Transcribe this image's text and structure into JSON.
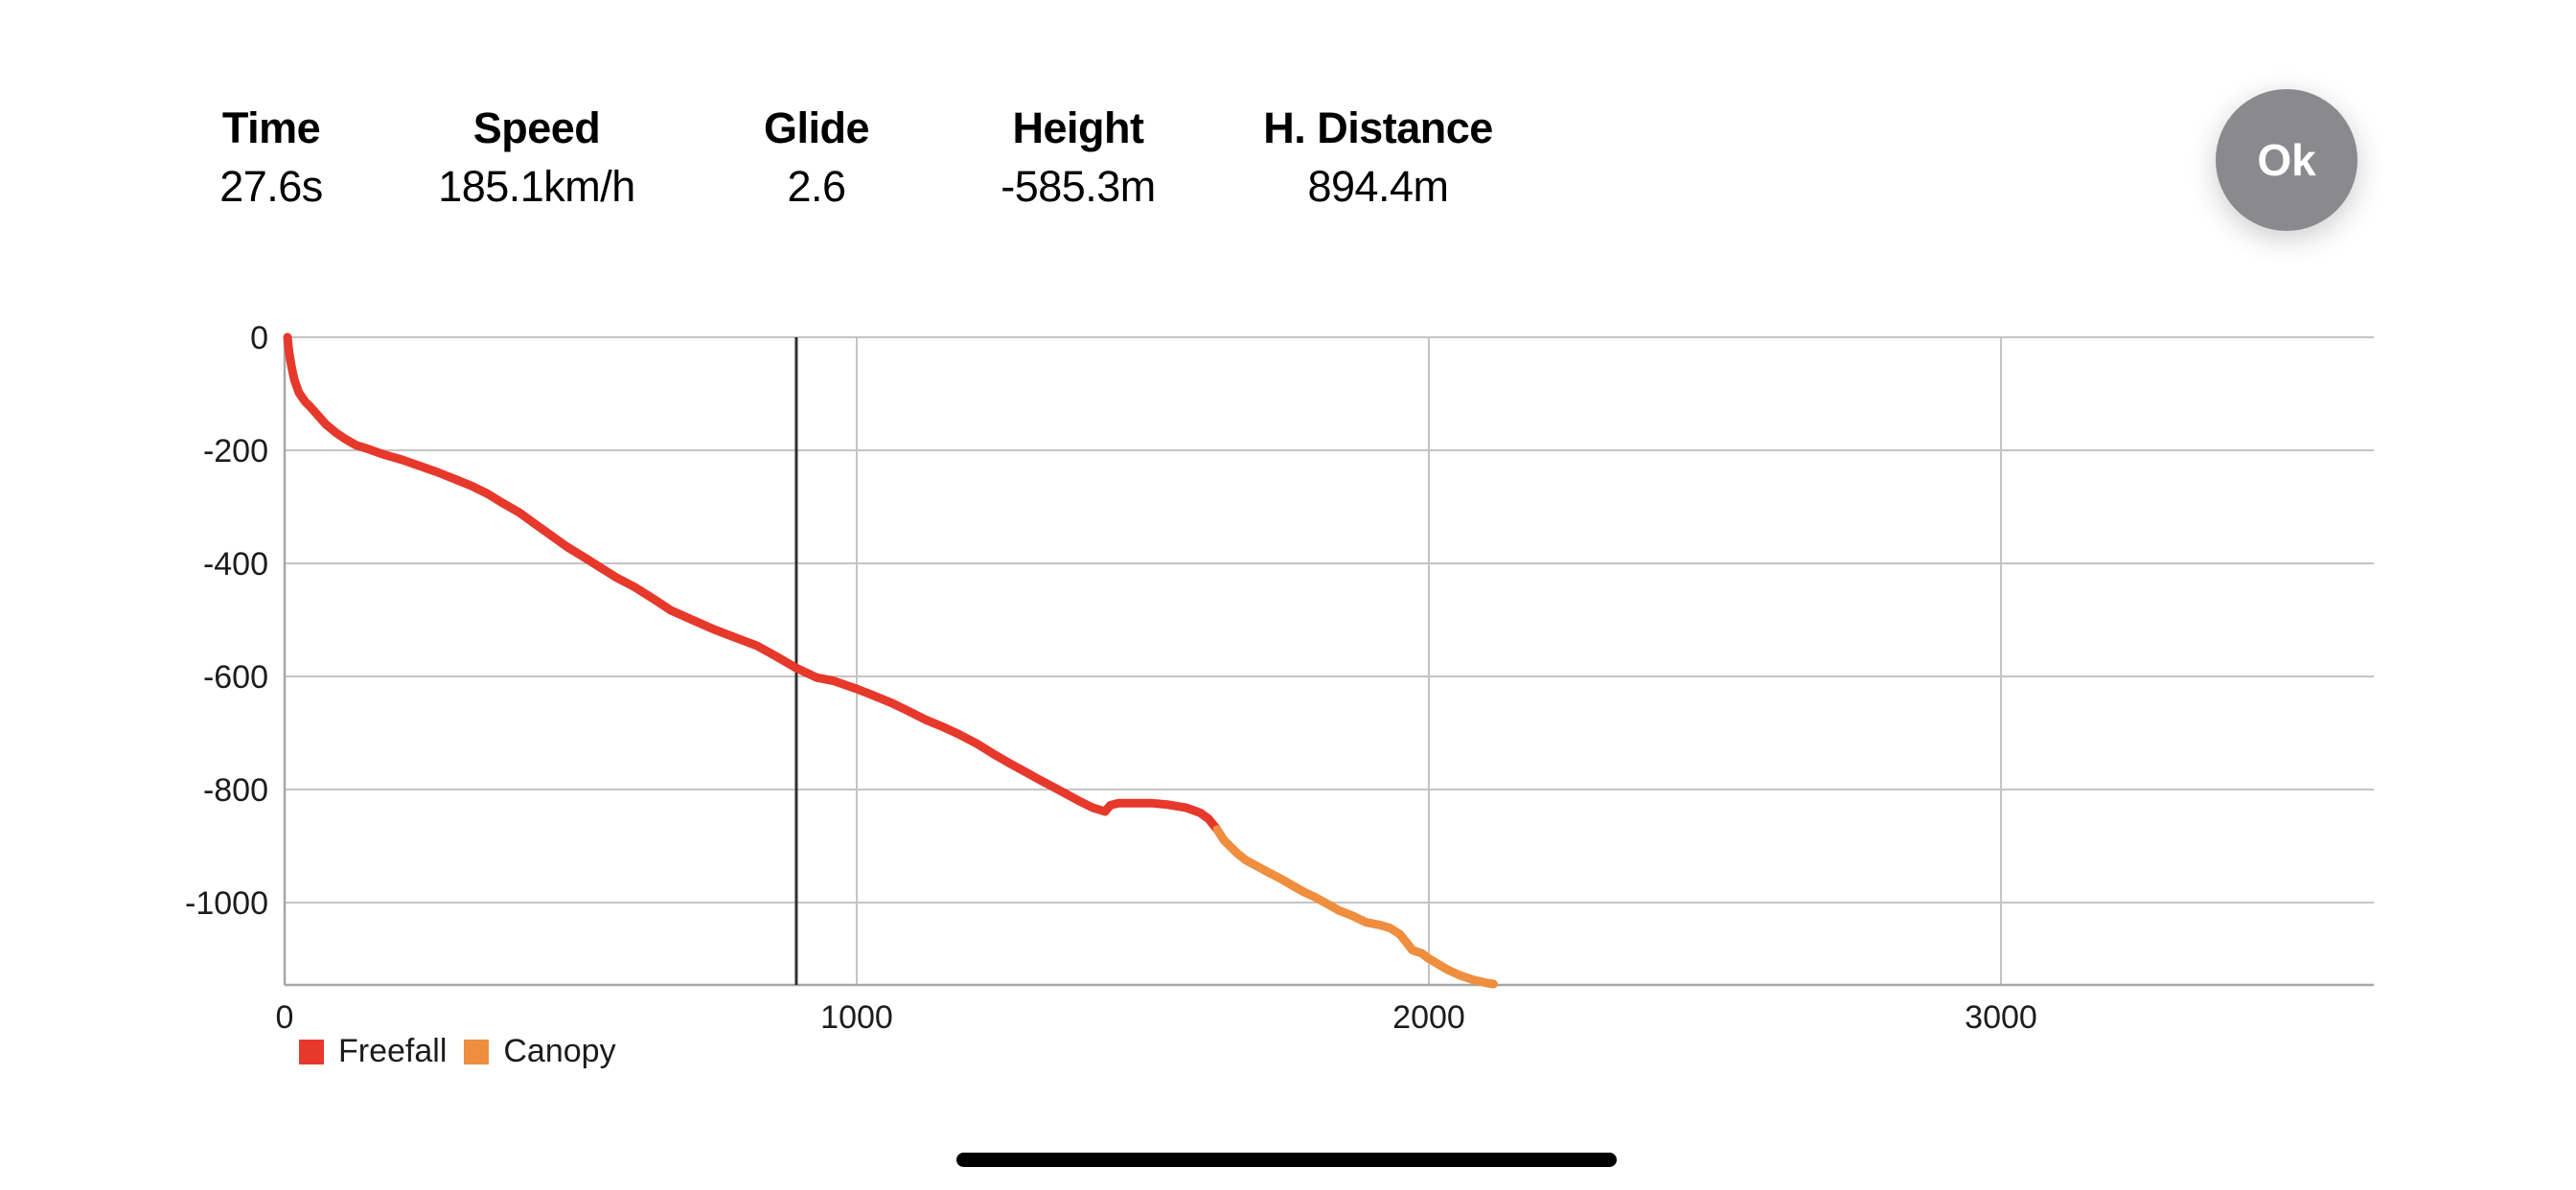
{
  "header": {
    "stats": [
      {
        "label": "Time",
        "value": "27.6s"
      },
      {
        "label": "Speed",
        "value": "185.1km/h"
      },
      {
        "label": "Glide",
        "value": "2.6"
      },
      {
        "label": "Height",
        "value": "-585.3m"
      },
      {
        "label": "H. Distance",
        "value": "894.4m"
      }
    ],
    "ok_label": "Ok"
  },
  "colors": {
    "freefall": "#e6392b",
    "canopy": "#ee8e3e",
    "gridline": "#c4c4c4",
    "axis": "#a6a6a6",
    "cursor": "#303030",
    "ok_button": "#8a8a8e"
  },
  "chart_data": {
    "type": "line",
    "title": "",
    "xlabel": "",
    "ylabel": "",
    "x_ticks": [
      0,
      1000,
      2000,
      3000
    ],
    "y_ticks": [
      0,
      -200,
      -400,
      -600,
      -800,
      -1000
    ],
    "xlim": [
      0,
      3653
    ],
    "ylim": [
      0,
      -1146
    ],
    "grid": true,
    "legend_position": "bottom-left",
    "cursor": {
      "x": 894.4,
      "y": -585.3
    },
    "series": [
      {
        "name": "Freefall",
        "color": "#e6392b",
        "points": [
          [
            5,
            0
          ],
          [
            8,
            -28
          ],
          [
            12,
            -52
          ],
          [
            17,
            -75
          ],
          [
            25,
            -98
          ],
          [
            36,
            -114
          ],
          [
            44,
            -122
          ],
          [
            58,
            -138
          ],
          [
            72,
            -154
          ],
          [
            90,
            -169
          ],
          [
            106,
            -180
          ],
          [
            125,
            -191
          ],
          [
            144,
            -197
          ],
          [
            175,
            -208
          ],
          [
            206,
            -217
          ],
          [
            237,
            -228
          ],
          [
            268,
            -239
          ],
          [
            300,
            -252
          ],
          [
            327,
            -263
          ],
          [
            355,
            -277
          ],
          [
            379,
            -292
          ],
          [
            410,
            -310
          ],
          [
            436,
            -329
          ],
          [
            465,
            -350
          ],
          [
            494,
            -371
          ],
          [
            525,
            -390
          ],
          [
            553,
            -408
          ],
          [
            580,
            -425
          ],
          [
            612,
            -442
          ],
          [
            645,
            -463
          ],
          [
            675,
            -483
          ],
          [
            715,
            -501
          ],
          [
            751,
            -517
          ],
          [
            790,
            -532
          ],
          [
            826,
            -546
          ],
          [
            860,
            -565
          ],
          [
            894,
            -585
          ],
          [
            930,
            -602
          ],
          [
            960,
            -608
          ],
          [
            1000,
            -622
          ],
          [
            1030,
            -634
          ],
          [
            1061,
            -647
          ],
          [
            1090,
            -661
          ],
          [
            1119,
            -676
          ],
          [
            1150,
            -689
          ],
          [
            1178,
            -702
          ],
          [
            1210,
            -719
          ],
          [
            1237,
            -736
          ],
          [
            1266,
            -753
          ],
          [
            1295,
            -769
          ],
          [
            1320,
            -783
          ],
          [
            1346,
            -797
          ],
          [
            1370,
            -810
          ],
          [
            1390,
            -821
          ],
          [
            1412,
            -832
          ],
          [
            1434,
            -839
          ],
          [
            1443,
            -828
          ],
          [
            1458,
            -824
          ],
          [
            1485,
            -824
          ],
          [
            1515,
            -824
          ],
          [
            1545,
            -827
          ],
          [
            1575,
            -832
          ],
          [
            1600,
            -841
          ],
          [
            1615,
            -852
          ],
          [
            1630,
            -871
          ]
        ]
      },
      {
        "name": "Canopy",
        "color": "#ee8e3e",
        "points": [
          [
            1630,
            -871
          ],
          [
            1642,
            -890
          ],
          [
            1664,
            -912
          ],
          [
            1680,
            -925
          ],
          [
            1702,
            -937
          ],
          [
            1722,
            -948
          ],
          [
            1743,
            -959
          ],
          [
            1762,
            -970
          ],
          [
            1781,
            -981
          ],
          [
            1800,
            -990
          ],
          [
            1820,
            -1001
          ],
          [
            1843,
            -1014
          ],
          [
            1868,
            -1024
          ],
          [
            1890,
            -1035
          ],
          [
            1915,
            -1040
          ],
          [
            1932,
            -1045
          ],
          [
            1949,
            -1056
          ],
          [
            1962,
            -1072
          ],
          [
            1971,
            -1084
          ],
          [
            1988,
            -1090
          ],
          [
            1998,
            -1098
          ],
          [
            2013,
            -1107
          ],
          [
            2033,
            -1119
          ],
          [
            2055,
            -1129
          ],
          [
            2078,
            -1137
          ],
          [
            2100,
            -1142
          ],
          [
            2113,
            -1144
          ]
        ]
      }
    ]
  }
}
